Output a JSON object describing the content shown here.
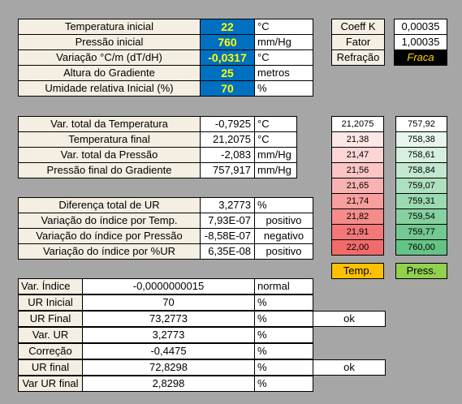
{
  "inputs": {
    "rows": [
      {
        "label": "Temperatura inicial",
        "value": "22",
        "unit": "°C"
      },
      {
        "label": "Pressão inicial",
        "value": "760",
        "unit": "mm/Hg"
      },
      {
        "label": "Variação °C/m (dT/dH)",
        "value": "-0,0317",
        "unit": "°C"
      },
      {
        "label": "Altura do Gradiente",
        "value": "25",
        "unit": "metros"
      },
      {
        "label": "Umidade relativa Inicial (%)",
        "value": "70",
        "unit": "%"
      }
    ]
  },
  "coef": {
    "rows": [
      {
        "label": "Coeff K",
        "value": "0,00035"
      },
      {
        "label": "Fator",
        "value": "1,00035"
      },
      {
        "label": "Refração",
        "value": "Fraca"
      }
    ]
  },
  "results": {
    "rows": [
      {
        "label": "Var. total da Temperatura",
        "value": "-0,7925",
        "unit": "°C"
      },
      {
        "label": "Temperatura final",
        "value": "21,2075",
        "unit": "°C"
      },
      {
        "label": "Var. total da Pressão",
        "value": "-2,083",
        "unit": "mm/Hg"
      },
      {
        "label": "Pressão final do Gradiente",
        "value": "757,917",
        "unit": "mm/Hg"
      }
    ]
  },
  "ur": {
    "rows": [
      {
        "label": "Diferença total de UR",
        "value": "3,2773",
        "unit": "%"
      },
      {
        "label": "Variação do índice por Temp.",
        "value": "7,93E-07",
        "unit": "positivo"
      },
      {
        "label": "Variação do índice por Pressão",
        "value": "-8,58E-07",
        "unit": "negativo"
      },
      {
        "label": "Variação do índice por %UR",
        "value": "6,35E-08",
        "unit": "positivo"
      }
    ]
  },
  "temp_scale": {
    "values": [
      "21,2075",
      "21,38",
      "21,47",
      "21,56",
      "21,65",
      "21,74",
      "21,82",
      "21,91",
      "22,00"
    ],
    "colors": [
      "#ffffff",
      "#fde6e6",
      "#fcd6d6",
      "#fbc5c5",
      "#f9b2b2",
      "#f79e9e",
      "#f58b8b",
      "#f37878",
      "#f26b6b"
    ],
    "label": "Temp."
  },
  "press_scale": {
    "values": [
      "757,92",
      "758,38",
      "758,61",
      "758,84",
      "759,07",
      "759,31",
      "759,54",
      "759,77",
      "760,00"
    ],
    "colors": [
      "#ffffff",
      "#e9f6ee",
      "#d6efdf",
      "#c2e8d0",
      "#aee0c0",
      "#9bd9b0",
      "#87d1a1",
      "#73c991",
      "#66c386"
    ],
    "label": "Press."
  },
  "final": {
    "rows": [
      {
        "label": "Var. Índice",
        "value": "-0,0000000015",
        "unit": "normal",
        "status": ""
      },
      {
        "label": "UR Inicial",
        "value": "70",
        "unit": "%",
        "status": ""
      },
      {
        "label": "UR Final",
        "value": "73,2773",
        "unit": "%",
        "status": "ok"
      },
      {
        "label": "Var. UR",
        "value": "3,2773",
        "unit": "%",
        "status": ""
      },
      {
        "label": "Correção",
        "value": "-0,4475",
        "unit": "%",
        "status": ""
      },
      {
        "label": "UR final",
        "value": "72,8298",
        "unit": "%",
        "status": "ok"
      },
      {
        "label": "Var UR final",
        "value": "2,8298",
        "unit": "%",
        "status": ""
      }
    ]
  }
}
